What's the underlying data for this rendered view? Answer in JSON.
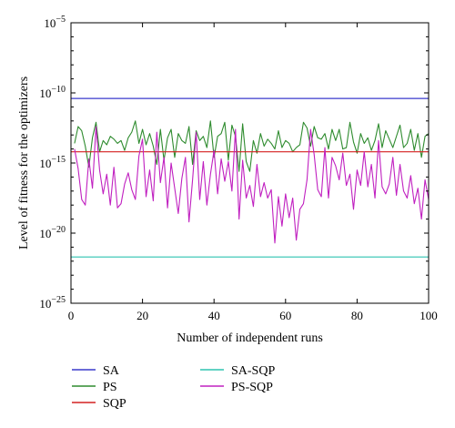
{
  "chart_data": {
    "type": "line",
    "xlabel": "Number of independent runs",
    "ylabel": "Level of fitness for the optimizers",
    "xlim": [
      0,
      100
    ],
    "ylim_log10": [
      -25,
      -5
    ],
    "y_scale": "log",
    "x_ticks": [
      {
        "value": 0,
        "label": "0"
      },
      {
        "value": 20,
        "label": "20"
      },
      {
        "value": 40,
        "label": "40"
      },
      {
        "value": 60,
        "label": "60"
      },
      {
        "value": 80,
        "label": "80"
      },
      {
        "value": 100,
        "label": "100"
      }
    ],
    "y_ticks": [
      {
        "exp": -5,
        "base": "10",
        "sup": "−5"
      },
      {
        "exp": -10,
        "base": "10",
        "sup": "−10"
      },
      {
        "exp": -15,
        "base": "10",
        "sup": "−15"
      },
      {
        "exp": -20,
        "base": "10",
        "sup": "−20"
      },
      {
        "exp": -25,
        "base": "10",
        "sup": "−25"
      }
    ],
    "grid": false,
    "legend_position": "bottom",
    "series": [
      {
        "name": "SA",
        "color": "#3a3acc",
        "constant_log10": -10.4
      },
      {
        "name": "PS",
        "color": "#2e8b2e",
        "log10": [
          -13.6,
          -12.4,
          -12.7,
          -13.8,
          -15.3,
          -13.2,
          -12.1,
          -14.2,
          -13.4,
          -13.7,
          -13.1,
          -13.3,
          -13.6,
          -13.4,
          -14.1,
          -13.2,
          -12.8,
          -12.0,
          -13.6,
          -12.6,
          -13.7,
          -12.9,
          -13.8,
          -15.1,
          -12.6,
          -14.8,
          -13.2,
          -12.6,
          -14.6,
          -12.9,
          -13.4,
          -13.6,
          -12.4,
          -15.1,
          -12.7,
          -13.4,
          -13.1,
          -13.9,
          -12.0,
          -14.6,
          -13.1,
          -12.9,
          -12.1,
          -14.8,
          -12.3,
          -13.1,
          -15.6,
          -12.2,
          -14.9,
          -15.6,
          -13.4,
          -14.3,
          -12.9,
          -13.8,
          -13.3,
          -13.6,
          -14.0,
          -12.7,
          -13.9,
          -13.4,
          -13.6,
          -14.2,
          -13.9,
          -13.7,
          -12.1,
          -12.5,
          -13.8,
          -12.4,
          -13.2,
          -13.3,
          -12.9,
          -14.0,
          -12.6,
          -13.4,
          -12.6,
          -14.0,
          -13.9,
          -12.1,
          -13.5,
          -14.3,
          -12.9,
          -13.6,
          -13.2,
          -14.1,
          -13.4,
          -12.2,
          -13.9,
          -12.7,
          -13.3,
          -13.9,
          -13.1,
          -12.3,
          -13.9,
          -13.6,
          -12.6,
          -14.1,
          -12.9,
          -14.6,
          -13.1,
          -12.9
        ],
        "x_start": 1
      },
      {
        "name": "SQP",
        "color": "#d42020",
        "constant_log10": -14.2
      },
      {
        "name": "SA-SQP",
        "color": "#2ec4b0",
        "constant_log10": -21.7
      },
      {
        "name": "PS-SQP",
        "color": "#c020c0",
        "log10": [
          -14.0,
          -15.4,
          -17.6,
          -18.0,
          -14.7,
          -16.8,
          -12.4,
          -15.5,
          -17.2,
          -15.8,
          -18.0,
          -15.3,
          -18.2,
          -17.9,
          -16.5,
          -15.7,
          -16.9,
          -17.6,
          -14.5,
          -13.3,
          -17.4,
          -15.5,
          -17.7,
          -12.8,
          -16.4,
          -14.6,
          -18.2,
          -15.0,
          -16.8,
          -18.6,
          -16.1,
          -14.6,
          -19.2,
          -16.2,
          -12.8,
          -17.6,
          -14.9,
          -18.0,
          -15.8,
          -14.1,
          -17.2,
          -14.7,
          -16.3,
          -14.9,
          -17.0,
          -12.6,
          -19.0,
          -14.8,
          -17.5,
          -16.6,
          -18.1,
          -15.1,
          -17.4,
          -16.4,
          -17.5,
          -16.9,
          -20.7,
          -17.4,
          -19.5,
          -17.2,
          -18.9,
          -17.5,
          -20.5,
          -18.3,
          -17.9,
          -16.2,
          -12.6,
          -14.4,
          -16.9,
          -17.4,
          -13.9,
          -17.5,
          -14.6,
          -15.2,
          -16.2,
          -14.3,
          -16.6,
          -15.8,
          -18.3,
          -15.5,
          -16.6,
          -14.2,
          -16.7,
          -15.1,
          -17.5,
          -13.4,
          -16.7,
          -17.2,
          -16.5,
          -14.6,
          -17.3,
          -15.1,
          -17.0,
          -17.5,
          -15.9,
          -17.9,
          -16.8,
          -19.0,
          -16.2,
          -17.6
        ],
        "x_start": 1
      }
    ]
  }
}
